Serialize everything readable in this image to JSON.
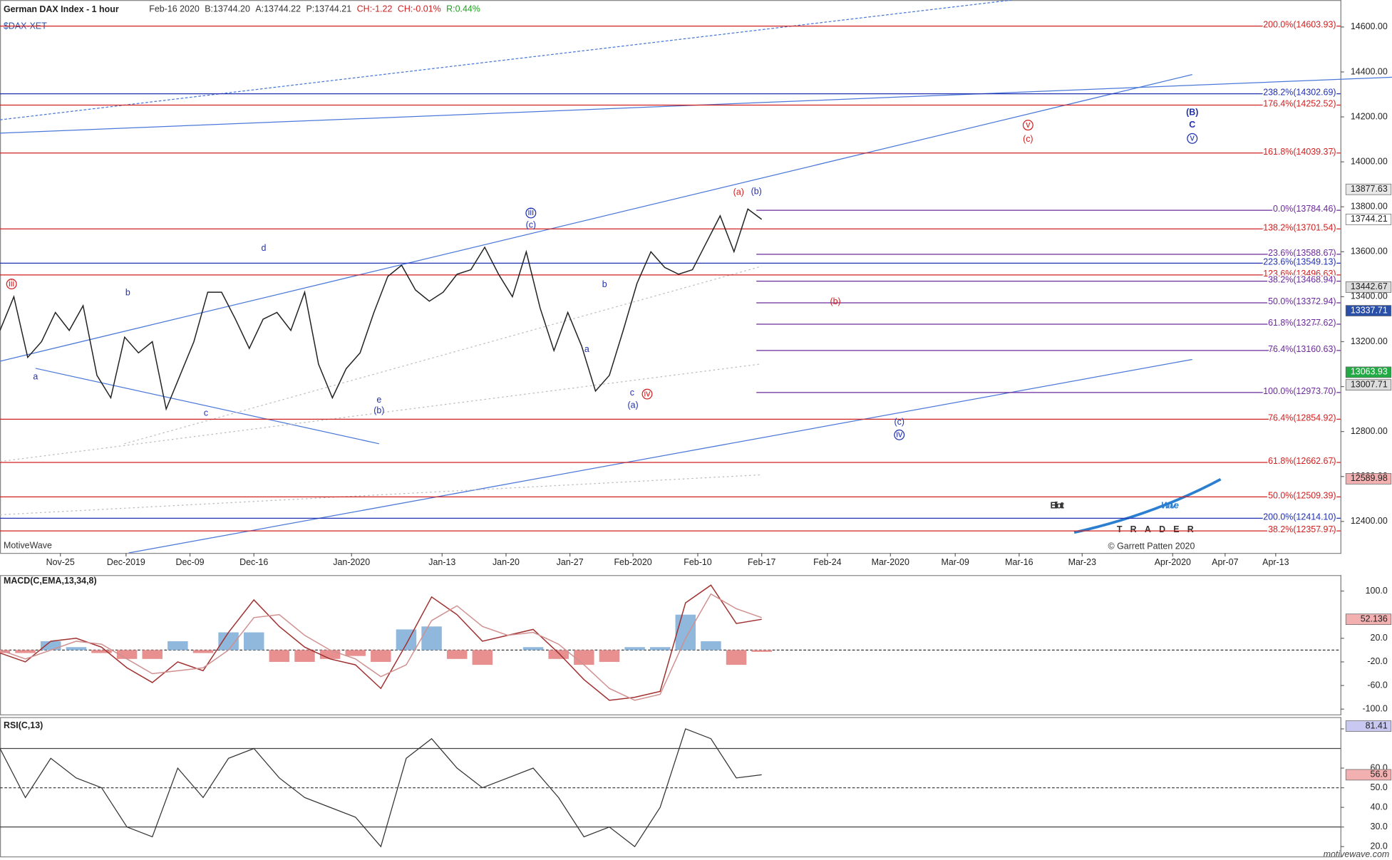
{
  "chart_data": [
    {
      "type": "line",
      "title": "German DAX Index - 1 hour",
      "subtitle": [
        {
          "text": "Feb-16 2020",
          "color": "#333333"
        },
        {
          "text": "B:13744.20",
          "color": "#333333"
        },
        {
          "text": "A:13744.22",
          "color": "#333333"
        },
        {
          "text": "P:13744.21",
          "color": "#333333"
        },
        {
          "text": "CH:-1.22",
          "color": "#d02020"
        },
        {
          "text": "CH:-0.01%",
          "color": "#d02020"
        },
        {
          "text": "R:0.44%",
          "color": "#20a020"
        }
      ],
      "symbol": "$DAX-XET",
      "watermark": "MotiveWave",
      "footer": "motivewave.com",
      "x_labels": [
        "Nov-25",
        "Dec-2019",
        "Dec-09",
        "Dec-16",
        "Jan-2020",
        "Jan-13",
        "Jan-20",
        "Jan-27",
        "Feb-2020",
        "Feb-10",
        "Feb-17",
        "Feb-24",
        "Mar-2020",
        "Mar-09",
        "Mar-16",
        "Mar-23",
        "Apr-2020",
        "Apr-07",
        "Apr-13"
      ],
      "values": [
        13250,
        13400,
        13130,
        13200,
        13330,
        13250,
        13360,
        13050,
        12950,
        13220,
        13150,
        13200,
        12900,
        13050,
        13200,
        13420,
        13420,
        13300,
        13170,
        13300,
        13330,
        13250,
        13420,
        13100,
        12950,
        13080,
        13150,
        13330,
        13490,
        13540,
        13430,
        13380,
        13420,
        13500,
        13520,
        13620,
        13500,
        13400,
        13600,
        13350,
        13160,
        13330,
        13180,
        12980,
        13050,
        13250,
        13460,
        13600,
        13530,
        13500,
        13520,
        13640,
        13760,
        13600,
        13790,
        13744
      ],
      "color": "#222222",
      "ylim": [
        12260,
        14720
      ],
      "yticks": [
        {
          "value": 12400,
          "label": "12400.00"
        },
        {
          "value": 12600,
          "label": "12600.00"
        },
        {
          "value": 12800,
          "label": "12800.00"
        },
        {
          "value": 13000,
          "label": "13000.00"
        },
        {
          "value": 13200,
          "label": "13200.00"
        },
        {
          "value": 13400,
          "label": "13400.00"
        },
        {
          "value": 13600,
          "label": "13600.00"
        },
        {
          "value": 13800,
          "label": "13800.00"
        },
        {
          "value": 14000,
          "label": "14000.00"
        },
        {
          "value": 14200,
          "label": "14200.00"
        },
        {
          "value": 14400,
          "label": "14400.00"
        },
        {
          "value": 14600,
          "label": "14600.00"
        }
      ],
      "levels": [
        {
          "label": "200.0%(14603.93)",
          "value": 14603.93,
          "color": "#d02020",
          "span": "full"
        },
        {
          "label": "238.2%(14302.69)",
          "value": 14302.69,
          "color": "#2030b0",
          "span": "full"
        },
        {
          "label": "176.4%(14252.52)",
          "value": 14252.52,
          "color": "#d02020",
          "span": "full"
        },
        {
          "label": "161.8%(14039.37)",
          "value": 14039.37,
          "color": "#d02020",
          "span": "full"
        },
        {
          "label": "0.0%(13784.46)",
          "value": 13784.46,
          "color": "#6a2a9a",
          "span": "right"
        },
        {
          "label": "138.2%(13701.54)",
          "value": 13701.54,
          "color": "#d02020",
          "span": "full"
        },
        {
          "label": "23.6%(13588.67)",
          "value": 13588.67,
          "color": "#6a2a9a",
          "span": "right"
        },
        {
          "label": "223.6%(13549.13)",
          "value": 13549.13,
          "color": "#2030b0",
          "span": "full"
        },
        {
          "label": "123.6%(13496.63)",
          "value": 13496.63,
          "color": "#d02020",
          "span": "full"
        },
        {
          "label": "38.2%(13468.94)",
          "value": 13468.94,
          "color": "#6a2a9a",
          "span": "right"
        },
        {
          "label": "50.0%(13372.94)",
          "value": 13372.94,
          "color": "#6a2a9a",
          "span": "right"
        },
        {
          "label": "61.8%(13277.62)",
          "value": 13277.62,
          "color": "#6a2a9a",
          "span": "right"
        },
        {
          "label": "76.4%(13160.63)",
          "value": 13160.63,
          "color": "#6a2a9a",
          "span": "right"
        },
        {
          "label": "100.0%(12973.70)",
          "value": 12973.7,
          "color": "#6a2a9a",
          "span": "right"
        },
        {
          "label": "76.4%(12854.92)",
          "value": 12854.92,
          "color": "#d02020",
          "span": "full"
        },
        {
          "label": "61.8%(12662.67)",
          "value": 12662.67,
          "color": "#d02020",
          "span": "full"
        },
        {
          "label": "50.0%(12509.39)",
          "value": 12509.39,
          "color": "#d02020",
          "span": "full"
        },
        {
          "label": "200.0%(12414.10)",
          "value": 12414.1,
          "color": "#2030b0",
          "span": "full"
        },
        {
          "label": "38.2%(12357.97)",
          "value": 12357.97,
          "color": "#d02020",
          "span": "full"
        }
      ],
      "price_labels": [
        {
          "value": 13877.63,
          "color": "#e8e8e8",
          "text_color": "#222222"
        },
        {
          "value": 13744.21,
          "color": "#ffffff",
          "text_color": "#222222"
        },
        {
          "value": 13442.67,
          "color": "#dddddd",
          "text_color": "#222222"
        },
        {
          "value": 13337.71,
          "color": "#2a4fa8",
          "text_color": "#ffffff"
        },
        {
          "value": 13063.93,
          "color": "#22aa44",
          "text_color": "#ffffff"
        },
        {
          "value": 13007.71,
          "color": "#dddddd",
          "text_color": "#222222"
        },
        {
          "value": 12589.98,
          "color": "#f2b0b0",
          "text_color": "#222222"
        }
      ],
      "wave_labels": [
        {
          "text": "iii",
          "color": "#d02020",
          "circled": true
        },
        {
          "text": "a",
          "color": "#2030b0"
        },
        {
          "text": "b",
          "color": "#2030b0"
        },
        {
          "text": "c",
          "color": "#2030b0"
        },
        {
          "text": "d",
          "color": "#2030b0"
        },
        {
          "text": "e",
          "color": "#2030b0"
        },
        {
          "text": "(b)",
          "color": "#2030b0"
        },
        {
          "text": "iii",
          "color": "#2030b0",
          "circled": true
        },
        {
          "text": "(c)",
          "color": "#2030b0"
        },
        {
          "text": "a",
          "color": "#2030b0"
        },
        {
          "text": "b",
          "color": "#2030b0"
        },
        {
          "text": "c",
          "color": "#2030b0"
        },
        {
          "text": "iv",
          "color": "#d02020",
          "circled": true
        },
        {
          "text": "(a)",
          "color": "#2030b0"
        },
        {
          "text": "(a)",
          "color": "#d02020"
        },
        {
          "text": "(b)",
          "color": "#2030b0"
        },
        {
          "text": "(b)",
          "color": "#d02020"
        },
        {
          "text": "v",
          "color": "#d02020",
          "circled": true
        },
        {
          "text": "(c)",
          "color": "#d02020"
        },
        {
          "text": "(B)",
          "color": "#2030b0",
          "bold": true
        },
        {
          "text": "C",
          "color": "#2030b0",
          "bold": true
        },
        {
          "text": "v",
          "color": "#2030b0",
          "circled": true
        },
        {
          "text": "(c)",
          "color": "#2030b0"
        },
        {
          "text": "iv",
          "color": "#2030b0",
          "circled": true
        }
      ],
      "logo": {
        "word1": "Elliott",
        "word2": "Wave",
        "sub": "TRADER",
        "credit": "© Garrett Patten 2020"
      }
    },
    {
      "type": "macd",
      "title": "MACD(C,EMA,13,34,8)",
      "ylim": [
        -109,
        127
      ],
      "yticks": [
        {
          "value": 100,
          "label": "100.0"
        },
        {
          "value": 20,
          "label": "20.0"
        },
        {
          "value": -20,
          "label": "-20.0"
        },
        {
          "value": -60,
          "label": "-60.0"
        },
        {
          "value": -100,
          "label": "-100.0"
        }
      ],
      "reference_lines": [
        0
      ],
      "current": {
        "value": 52.136,
        "color": "#f2b0b0"
      },
      "series": [
        {
          "color": "#a03030",
          "values": [
            -5,
            -20,
            15,
            20,
            5,
            -30,
            -55,
            -20,
            -35,
            30,
            85,
            40,
            5,
            -15,
            -25,
            -65,
            10,
            90,
            60,
            15,
            25,
            35,
            -5,
            -50,
            -85,
            -80,
            -70,
            80,
            110,
            45,
            52.136
          ]
        },
        {
          "color": "#d09090",
          "values": [
            0,
            -15,
            0,
            15,
            10,
            -15,
            -40,
            -35,
            -30,
            0,
            55,
            60,
            25,
            0,
            -15,
            -45,
            -25,
            50,
            75,
            40,
            25,
            30,
            10,
            -25,
            -65,
            -85,
            -75,
            20,
            95,
            70,
            55
          ]
        }
      ],
      "histogram": {
        "values": [
          -5,
          -5,
          15,
          5,
          -5,
          -15,
          -15,
          15,
          -5,
          30,
          30,
          -20,
          -20,
          -15,
          -10,
          -20,
          35,
          40,
          -15,
          -25,
          0,
          5,
          -15,
          -25,
          -20,
          5,
          5,
          60,
          15,
          -25,
          -3
        ],
        "positive_color": "#90b8dc",
        "negative_color": "#e89090"
      }
    },
    {
      "type": "rsi",
      "title": "RSI(C,13)",
      "ylim": [
        15,
        86
      ],
      "yticks": [
        {
          "value": 80,
          "label": "80.0"
        },
        {
          "value": 60,
          "label": "60.0"
        },
        {
          "value": 50,
          "label": "50.0"
        },
        {
          "value": 40,
          "label": "40.0"
        },
        {
          "value": 30,
          "label": "30.0"
        },
        {
          "value": 20,
          "label": "20.0"
        }
      ],
      "reference_lines": [
        70,
        50,
        30
      ],
      "current_labels": [
        {
          "value": 81.41,
          "color": "#c8c8f0"
        },
        {
          "value": 56.6,
          "color": "#f2b0b0"
        }
      ],
      "values": [
        70,
        45,
        65,
        55,
        50,
        30,
        25,
        60,
        45,
        65,
        70,
        55,
        45,
        40,
        35,
        20,
        65,
        75,
        60,
        50,
        55,
        60,
        45,
        25,
        30,
        20,
        40,
        80,
        75,
        55,
        56.6
      ],
      "color": "#333333"
    }
  ]
}
